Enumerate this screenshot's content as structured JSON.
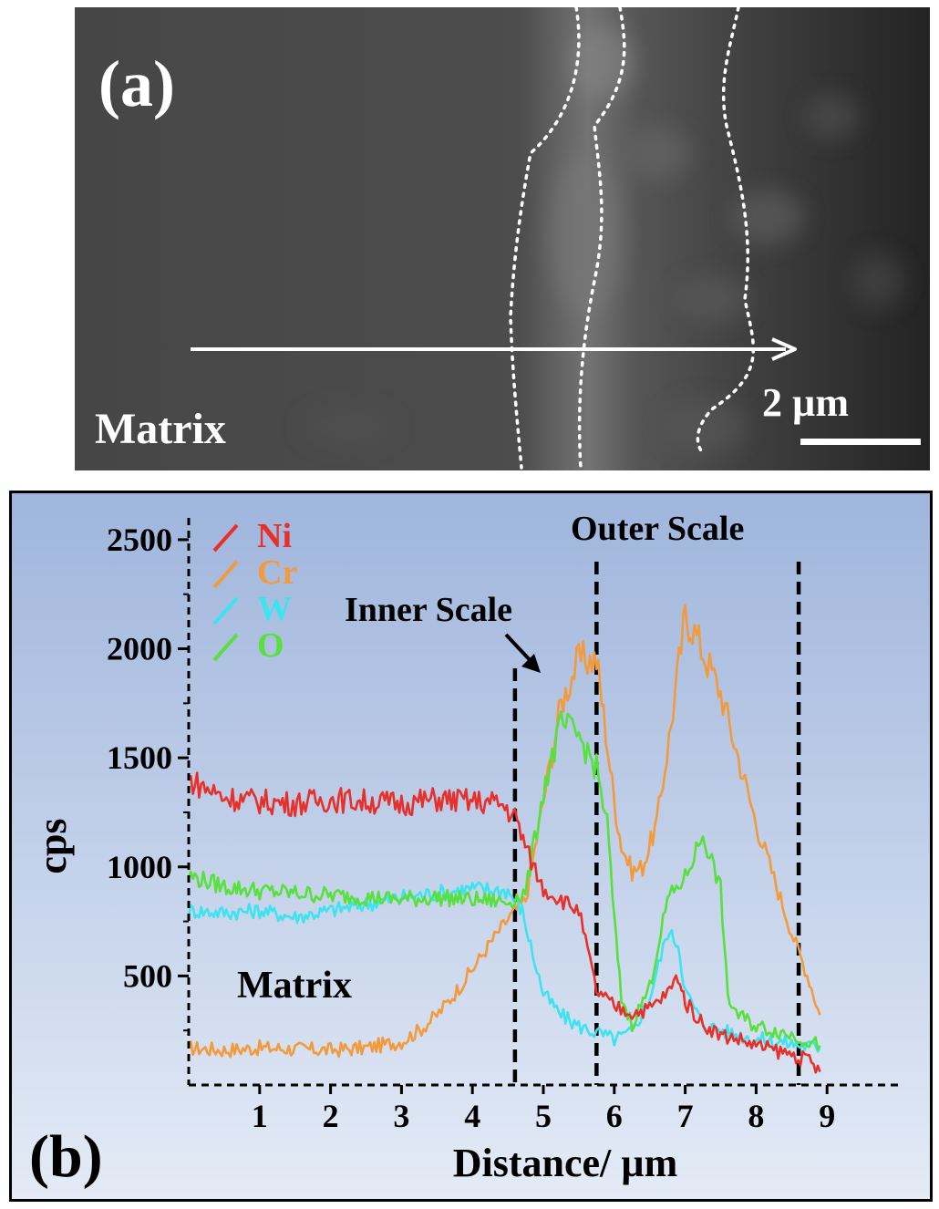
{
  "panel_a": {
    "label": "(a)",
    "region_label": "Matrix",
    "scale_bar_label": "2 µm"
  },
  "panel_b": {
    "label": "(b)",
    "annotations": {
      "outer_scale": "Outer Scale",
      "inner_scale": "Inner Scale",
      "matrix": "Matrix"
    }
  },
  "colors": {
    "Ni": "#e8302a",
    "Cr": "#f39a3c",
    "W": "#3fe3f0",
    "O": "#57e03e",
    "plot_bg_top": "#9fb5dc",
    "plot_bg_bottom": "#e4ebf6"
  },
  "chart_data": {
    "type": "line",
    "xlabel": "Distance/ µm",
    "ylabel": "cps",
    "xlim": [
      0,
      10
    ],
    "ylim": [
      0,
      2600
    ],
    "x_ticks": [
      1,
      2,
      3,
      4,
      5,
      6,
      7,
      8,
      9
    ],
    "y_ticks": [
      500,
      1000,
      1500,
      2000,
      2500
    ],
    "boundaries_um": [
      4.6,
      5.75,
      8.6
    ],
    "legend_position": "top-left",
    "series": [
      {
        "name": "Ni",
        "points": [
          [
            0,
            1400
          ],
          [
            0.5,
            1320
          ],
          [
            1,
            1300
          ],
          [
            1.5,
            1290
          ],
          [
            2,
            1310
          ],
          [
            2.5,
            1300
          ],
          [
            3,
            1290
          ],
          [
            3.5,
            1310
          ],
          [
            4,
            1300
          ],
          [
            4.4,
            1290
          ],
          [
            4.6,
            1230
          ],
          [
            4.8,
            1050
          ],
          [
            5,
            900
          ],
          [
            5.25,
            850
          ],
          [
            5.5,
            800
          ],
          [
            5.75,
            430
          ],
          [
            6,
            360
          ],
          [
            6.25,
            330
          ],
          [
            6.5,
            350
          ],
          [
            6.75,
            420
          ],
          [
            6.9,
            500
          ],
          [
            7,
            380
          ],
          [
            7.25,
            280
          ],
          [
            7.5,
            230
          ],
          [
            7.75,
            210
          ],
          [
            8,
            180
          ],
          [
            8.25,
            160
          ],
          [
            8.5,
            140
          ],
          [
            8.75,
            110
          ],
          [
            8.9,
            60
          ]
        ]
      },
      {
        "name": "Cr",
        "points": [
          [
            0,
            170
          ],
          [
            0.5,
            160
          ],
          [
            1,
            170
          ],
          [
            1.5,
            165
          ],
          [
            2,
            160
          ],
          [
            2.5,
            170
          ],
          [
            3,
            200
          ],
          [
            3.25,
            250
          ],
          [
            3.5,
            320
          ],
          [
            3.75,
            420
          ],
          [
            4,
            530
          ],
          [
            4.25,
            650
          ],
          [
            4.5,
            760
          ],
          [
            4.75,
            850
          ],
          [
            5,
            1300
          ],
          [
            5.25,
            1750
          ],
          [
            5.5,
            1950
          ],
          [
            5.75,
            1950
          ],
          [
            5.85,
            1700
          ],
          [
            6,
            1300
          ],
          [
            6.1,
            1100
          ],
          [
            6.25,
            980
          ],
          [
            6.4,
            1000
          ],
          [
            6.6,
            1200
          ],
          [
            6.8,
            1650
          ],
          [
            7,
            2150
          ],
          [
            7.1,
            2100
          ],
          [
            7.5,
            1800
          ],
          [
            7.75,
            1500
          ],
          [
            8,
            1200
          ],
          [
            8.25,
            950
          ],
          [
            8.5,
            700
          ],
          [
            8.75,
            480
          ],
          [
            8.9,
            320
          ]
        ]
      },
      {
        "name": "W",
        "points": [
          [
            0,
            800
          ],
          [
            0.5,
            790
          ],
          [
            1,
            800
          ],
          [
            1.5,
            770
          ],
          [
            2,
            800
          ],
          [
            2.5,
            830
          ],
          [
            3,
            860
          ],
          [
            3.5,
            880
          ],
          [
            4,
            900
          ],
          [
            4.5,
            890
          ],
          [
            4.7,
            800
          ],
          [
            4.85,
            600
          ],
          [
            5,
            420
          ],
          [
            5.25,
            320
          ],
          [
            5.5,
            270
          ],
          [
            5.75,
            240
          ],
          [
            6,
            210
          ],
          [
            6.25,
            240
          ],
          [
            6.5,
            400
          ],
          [
            6.75,
            700
          ],
          [
            6.9,
            650
          ],
          [
            7,
            430
          ],
          [
            7.25,
            280
          ],
          [
            7.5,
            250
          ],
          [
            7.75,
            230
          ],
          [
            8,
            210
          ],
          [
            8.5,
            190
          ],
          [
            8.9,
            170
          ]
        ]
      },
      {
        "name": "O",
        "points": [
          [
            0,
            960
          ],
          [
            0.5,
            910
          ],
          [
            1,
            890
          ],
          [
            1.5,
            880
          ],
          [
            2,
            870
          ],
          [
            2.5,
            860
          ],
          [
            3,
            850
          ],
          [
            3.5,
            860
          ],
          [
            4,
            850
          ],
          [
            4.5,
            840
          ],
          [
            4.75,
            880
          ],
          [
            5,
            1350
          ],
          [
            5.25,
            1650
          ],
          [
            5.5,
            1600
          ],
          [
            5.75,
            1450
          ],
          [
            5.9,
            1200
          ],
          [
            6,
            760
          ],
          [
            6.1,
            400
          ],
          [
            6.25,
            280
          ],
          [
            6.5,
            450
          ],
          [
            6.75,
            850
          ],
          [
            7,
            950
          ],
          [
            7.25,
            1150
          ],
          [
            7.5,
            900
          ],
          [
            7.6,
            400
          ],
          [
            7.75,
            320
          ],
          [
            8,
            270
          ],
          [
            8.5,
            230
          ],
          [
            8.9,
            180
          ]
        ]
      }
    ]
  }
}
